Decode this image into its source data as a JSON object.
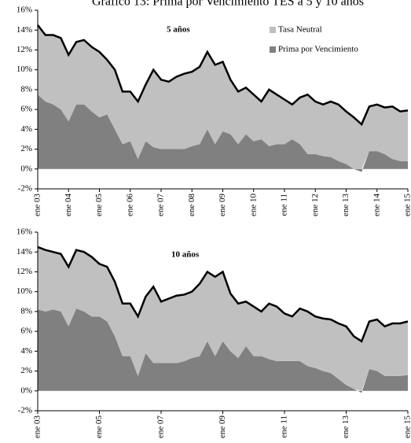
{
  "title": "Gráfico 13: Prima por Vencimiento TES a 5 y 10 años",
  "chart_data": [
    {
      "type": "stacked_area",
      "annotation": "5 años",
      "legend": true,
      "categories": [
        "ene 03",
        null,
        null,
        null,
        "ene 04",
        null,
        null,
        null,
        "ene 05",
        null,
        null,
        null,
        "ene 06",
        null,
        null,
        null,
        "ene 07",
        null,
        null,
        null,
        "ene 08",
        null,
        null,
        null,
        "ene 09",
        null,
        null,
        null,
        "ene 10",
        null,
        null,
        null,
        "ene 11",
        null,
        null,
        null,
        "ene 12",
        null,
        null,
        null,
        "ene 13",
        null,
        null,
        null,
        "ene 14",
        null,
        null,
        null,
        "ene 15"
      ],
      "ylim": [
        -2,
        16
      ],
      "yticks": [
        {
          "value": -2,
          "label": "-2%"
        },
        {
          "value": 0,
          "label": "0%"
        },
        {
          "value": 2,
          "label": "2%"
        },
        {
          "value": 4,
          "label": "4%"
        },
        {
          "value": 6,
          "label": "6%"
        },
        {
          "value": 8,
          "label": "8%"
        },
        {
          "value": 10,
          "label": "10%"
        },
        {
          "value": 12,
          "label": "12%"
        },
        {
          "value": 14,
          "label": "14%"
        },
        {
          "value": 16,
          "label": "16%"
        }
      ],
      "outline_color": "#000000",
      "series": [
        {
          "name": "Prima por Vencimiento",
          "color": "#808080",
          "values": [
            7.5,
            6.8,
            6.5,
            6.0,
            4.8,
            6.5,
            6.5,
            5.8,
            5.2,
            5.5,
            4.0,
            2.5,
            2.8,
            1.0,
            2.8,
            2.2,
            2.0,
            2.0,
            2.0,
            2.0,
            2.3,
            2.5,
            4.0,
            2.5,
            3.8,
            3.5,
            2.5,
            3.5,
            2.8,
            3.0,
            2.3,
            2.5,
            2.5,
            3.0,
            2.5,
            1.5,
            1.5,
            1.3,
            1.2,
            0.8,
            0.5,
            0.0,
            -0.3,
            1.8,
            1.8,
            1.5,
            1.0,
            0.8,
            0.8
          ]
        },
        {
          "name": "Tasa Neutral",
          "color": "#c0c0c0",
          "values": [
            7.0,
            6.7,
            7.0,
            7.2,
            6.7,
            6.3,
            6.5,
            6.5,
            6.6,
            5.5,
            6.0,
            5.3,
            5.0,
            5.8,
            5.7,
            7.8,
            7.0,
            6.8,
            7.3,
            7.6,
            7.5,
            7.8,
            7.8,
            8.0,
            7.0,
            5.5,
            5.3,
            4.7,
            4.7,
            3.8,
            5.7,
            5.0,
            4.5,
            3.5,
            4.7,
            6.0,
            5.3,
            5.2,
            5.6,
            5.7,
            5.3,
            5.2,
            4.5,
            4.5,
            4.7,
            4.7,
            5.3,
            5.0,
            5.1
          ]
        }
      ]
    },
    {
      "type": "stacked_area",
      "annotation": "10 años",
      "legend": false,
      "categories": [
        "ene 03",
        null,
        null,
        null,
        null,
        null,
        null,
        null,
        "ene 05",
        null,
        null,
        null,
        null,
        null,
        null,
        null,
        "ene 07",
        null,
        null,
        null,
        null,
        null,
        null,
        null,
        "ene 09",
        null,
        null,
        null,
        null,
        null,
        null,
        null,
        "ene 11",
        null,
        null,
        null,
        null,
        null,
        null,
        null,
        "ene 13",
        null,
        null,
        null,
        null,
        null,
        null,
        null,
        "ene 15"
      ],
      "ylim": [
        -2,
        16
      ],
      "yticks": [
        {
          "value": -2,
          "label": "-2%"
        },
        {
          "value": 0,
          "label": "0%"
        },
        {
          "value": 2,
          "label": "2%"
        },
        {
          "value": 4,
          "label": "4%"
        },
        {
          "value": 6,
          "label": "6%"
        },
        {
          "value": 8,
          "label": "8%"
        },
        {
          "value": 10,
          "label": "10%"
        },
        {
          "value": 12,
          "label": "12%"
        },
        {
          "value": 14,
          "label": "14%"
        },
        {
          "value": 16,
          "label": "16%"
        }
      ],
      "outline_color": "#000000",
      "series": [
        {
          "color": "#808080",
          "values": [
            8.2,
            8.0,
            8.2,
            8.0,
            6.5,
            8.3,
            8.0,
            7.5,
            7.5,
            7.0,
            5.5,
            3.5,
            3.5,
            1.5,
            3.8,
            2.8,
            2.8,
            2.8,
            2.8,
            3.0,
            3.3,
            3.5,
            5.0,
            3.5,
            5.0,
            4.0,
            3.3,
            4.5,
            3.5,
            3.5,
            3.2,
            3.0,
            3.0,
            3.0,
            3.0,
            2.5,
            2.3,
            2.0,
            1.8,
            1.2,
            0.6,
            0.2,
            -0.2,
            2.2,
            2.0,
            1.5,
            1.5,
            1.5,
            1.6
          ]
        },
        {
          "color": "#c0c0c0",
          "values": [
            6.3,
            6.2,
            5.8,
            5.8,
            6.0,
            5.9,
            6.0,
            6.0,
            5.3,
            5.5,
            5.5,
            5.3,
            5.3,
            6.0,
            5.7,
            7.7,
            6.2,
            6.5,
            6.8,
            6.7,
            6.7,
            7.3,
            7.0,
            8.0,
            7.0,
            5.8,
            5.5,
            4.5,
            5.0,
            4.5,
            5.6,
            5.5,
            4.8,
            4.5,
            5.3,
            5.5,
            5.2,
            5.3,
            5.4,
            5.6,
            5.9,
            5.3,
            5.0,
            4.8,
            5.2,
            5.0,
            5.3,
            5.3,
            5.4
          ]
        }
      ]
    }
  ]
}
